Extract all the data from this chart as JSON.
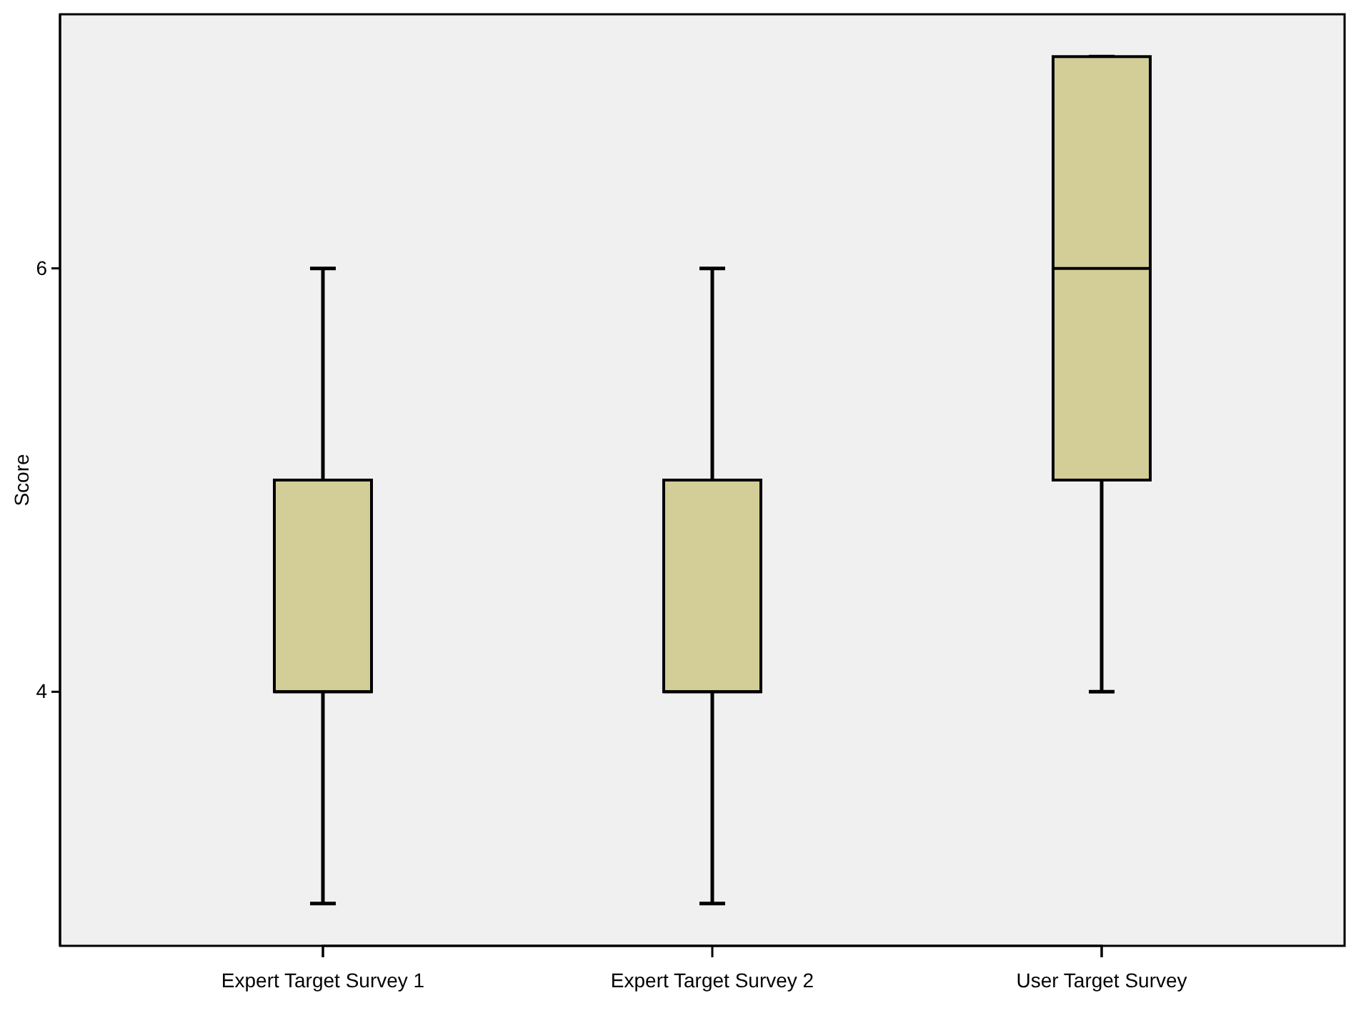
{
  "chart_data": {
    "type": "box",
    "ylabel": "Score",
    "categories": [
      "Expert Target Survey 1",
      "Expert Target Survey 2",
      "User Target Survey"
    ],
    "boxes": [
      {
        "low": 3,
        "q1": 4,
        "median": 4,
        "q3": 5,
        "high": 6
      },
      {
        "low": 3,
        "q1": 4,
        "median": 4,
        "q3": 5,
        "high": 6
      },
      {
        "low": 4,
        "q1": 5,
        "median": 6,
        "q3": 7,
        "high": 7
      }
    ],
    "color": "#d3ce97",
    "ylim": [
      2.8,
      7.2
    ],
    "yticks": [
      4,
      6
    ],
    "grid": false
  }
}
